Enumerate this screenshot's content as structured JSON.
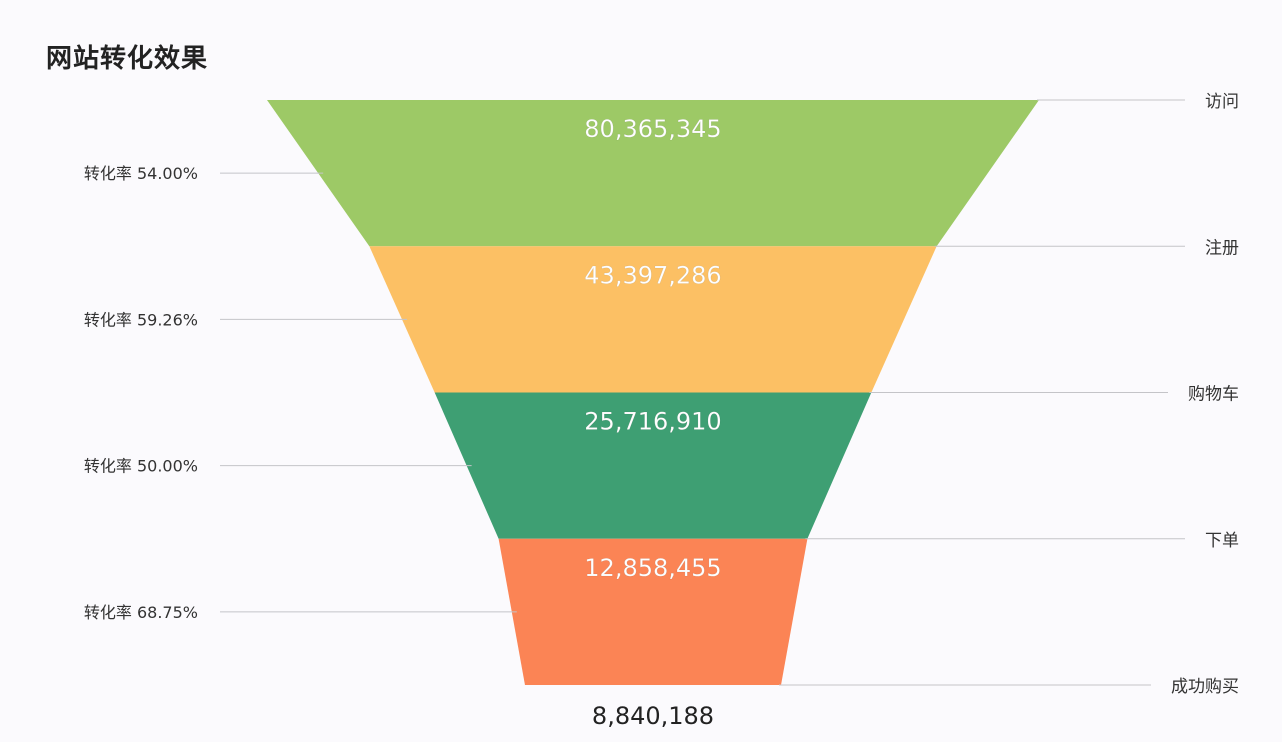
{
  "chart_data": {
    "type": "funnel",
    "title": "网站转化效果",
    "stages": [
      {
        "name": "访问",
        "value": 80365345,
        "label": "80,365,345",
        "color": "#9dc966"
      },
      {
        "name": "注册",
        "value": 43397286,
        "label": "43,397,286",
        "color": "#fcc064"
      },
      {
        "name": "购物车",
        "value": 25716910,
        "label": "25,716,910",
        "color": "#3e9f73"
      },
      {
        "name": "下单",
        "value": 12858455,
        "label": "12,858,455",
        "color": "#fb8455"
      },
      {
        "name": "成功购买",
        "value": 8840188,
        "label": "8,840,188"
      }
    ],
    "conversion_rates": [
      {
        "label": "转化率 54.00%",
        "value": 54.0
      },
      {
        "label": "转化率 59.26%",
        "value": 59.26
      },
      {
        "label": "转化率 50.00%",
        "value": 50.0
      },
      {
        "label": "转化率 68.75%",
        "value": 68.75
      }
    ]
  }
}
